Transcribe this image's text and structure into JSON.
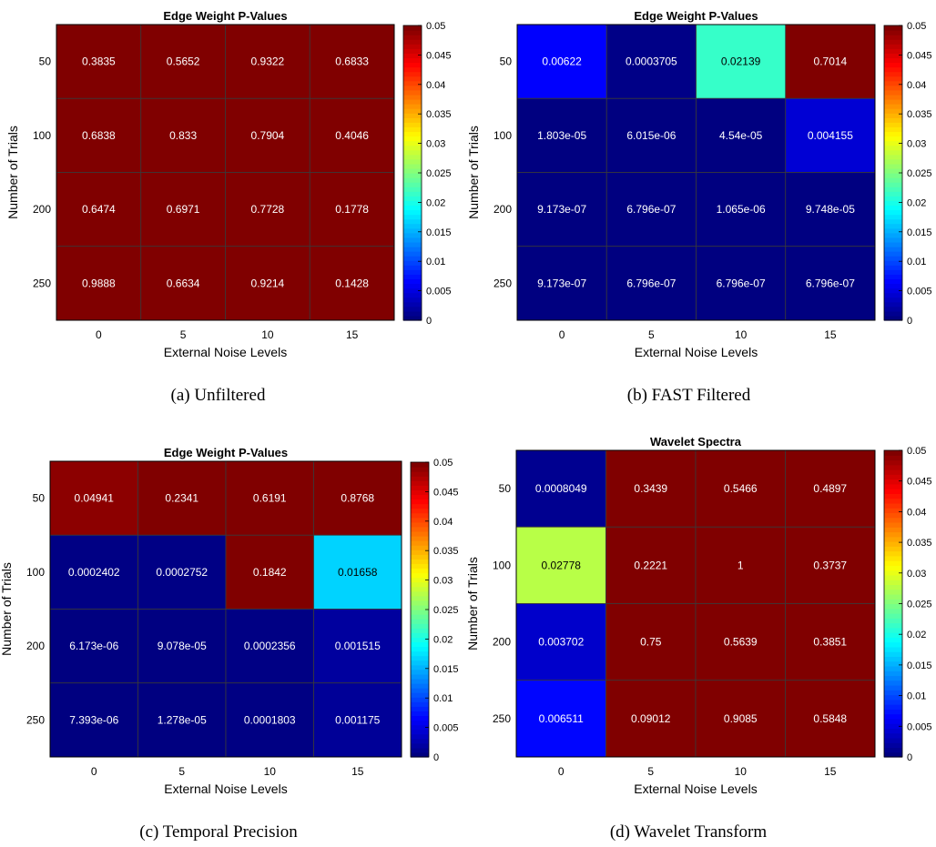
{
  "colormap": "jet",
  "chart_data": [
    {
      "type": "heatmap",
      "title": "Edge Weight P-Values",
      "caption": "(a) Unfiltered",
      "xlabel": "External Noise Levels",
      "ylabel": "Number of Trials",
      "x_categories": [
        "0",
        "5",
        "10",
        "15"
      ],
      "y_categories": [
        "50",
        "100",
        "200",
        "250"
      ],
      "values": [
        [
          0.3835,
          0.5652,
          0.9322,
          0.6833
        ],
        [
          0.6838,
          0.833,
          0.7904,
          0.4046
        ],
        [
          0.6474,
          0.6971,
          0.7728,
          0.1778
        ],
        [
          0.9888,
          0.6634,
          0.9214,
          0.1428
        ]
      ],
      "labels": [
        [
          "0.3835",
          "0.5652",
          "0.9322",
          "0.6833"
        ],
        [
          "0.6838",
          "0.833",
          "0.7904",
          "0.4046"
        ],
        [
          "0.6474",
          "0.6971",
          "0.7728",
          "0.1778"
        ],
        [
          "0.9888",
          "0.6634",
          "0.9214",
          "0.1428"
        ]
      ],
      "clim": [
        0,
        0.05
      ],
      "colorbar_ticks": [
        "0",
        "0.005",
        "0.01",
        "0.015",
        "0.02",
        "0.025",
        "0.03",
        "0.035",
        "0.04",
        "0.045",
        "0.05"
      ]
    },
    {
      "type": "heatmap",
      "title": "Edge Weight P-Values",
      "caption": "(b) FAST Filtered",
      "xlabel": "External Noise Levels",
      "ylabel": "Number of Trials",
      "x_categories": [
        "0",
        "5",
        "10",
        "15"
      ],
      "y_categories": [
        "50",
        "100",
        "200",
        "250"
      ],
      "values": [
        [
          0.00622,
          0.0003705,
          0.02139,
          0.7014
        ],
        [
          1.803e-05,
          6.015e-06,
          4.54e-05,
          0.004155
        ],
        [
          9.173e-07,
          6.796e-07,
          1.065e-06,
          9.748e-05
        ],
        [
          9.173e-07,
          6.796e-07,
          6.796e-07,
          6.796e-07
        ]
      ],
      "labels": [
        [
          "0.00622",
          "0.0003705",
          "0.02139",
          "0.7014"
        ],
        [
          "1.803e-05",
          "6.015e-06",
          "4.54e-05",
          "0.004155"
        ],
        [
          "9.173e-07",
          "6.796e-07",
          "1.065e-06",
          "9.748e-05"
        ],
        [
          "9.173e-07",
          "6.796e-07",
          "6.796e-07",
          "6.796e-07"
        ]
      ],
      "clim": [
        0,
        0.05
      ],
      "colorbar_ticks": [
        "0",
        "0.005",
        "0.01",
        "0.015",
        "0.02",
        "0.025",
        "0.03",
        "0.035",
        "0.04",
        "0.045",
        "0.05"
      ]
    },
    {
      "type": "heatmap",
      "title": "Edge Weight P-Values",
      "caption": "(c) Temporal Precision",
      "xlabel": "External Noise Levels",
      "ylabel": "Number of Trials",
      "x_categories": [
        "0",
        "5",
        "10",
        "15"
      ],
      "y_categories": [
        "50",
        "100",
        "200",
        "250"
      ],
      "values": [
        [
          0.04941,
          0.2341,
          0.6191,
          0.8768
        ],
        [
          0.0002402,
          0.0002752,
          0.1842,
          0.01658
        ],
        [
          6.173e-06,
          9.078e-05,
          0.0002356,
          0.001515
        ],
        [
          7.393e-06,
          1.278e-05,
          0.0001803,
          0.001175
        ]
      ],
      "labels": [
        [
          "0.04941",
          "0.2341",
          "0.6191",
          "0.8768"
        ],
        [
          "0.0002402",
          "0.0002752",
          "0.1842",
          "0.01658"
        ],
        [
          "6.173e-06",
          "9.078e-05",
          "0.0002356",
          "0.001515"
        ],
        [
          "7.393e-06",
          "1.278e-05",
          "0.0001803",
          "0.001175"
        ]
      ],
      "clim": [
        0,
        0.05
      ],
      "colorbar_ticks": [
        "0",
        "0.005",
        "0.01",
        "0.015",
        "0.02",
        "0.025",
        "0.03",
        "0.035",
        "0.04",
        "0.045",
        "0.05"
      ]
    },
    {
      "type": "heatmap",
      "title": "Wavelet Spectra",
      "caption": "(d) Wavelet Transform",
      "xlabel": "External Noise Levels",
      "ylabel": "Number of Trials",
      "x_categories": [
        "0",
        "5",
        "10",
        "15"
      ],
      "y_categories": [
        "50",
        "100",
        "200",
        "250"
      ],
      "values": [
        [
          0.0008049,
          0.3439,
          0.5466,
          0.4897
        ],
        [
          0.02778,
          0.2221,
          1,
          0.3737
        ],
        [
          0.003702,
          0.75,
          0.5639,
          0.3851
        ],
        [
          0.006511,
          0.09012,
          0.9085,
          0.5848
        ]
      ],
      "labels": [
        [
          "0.0008049",
          "0.3439",
          "0.5466",
          "0.4897"
        ],
        [
          "0.02778",
          "0.2221",
          "1",
          "0.3737"
        ],
        [
          "0.003702",
          "0.75",
          "0.5639",
          "0.3851"
        ],
        [
          "0.006511",
          "0.09012",
          "0.9085",
          "0.5848"
        ]
      ],
      "clim": [
        0,
        0.05
      ],
      "colorbar_ticks": [
        "0",
        "0.005",
        "0.01",
        "0.015",
        "0.02",
        "0.025",
        "0.03",
        "0.035",
        "0.04",
        "0.045",
        "0.05"
      ]
    }
  ]
}
